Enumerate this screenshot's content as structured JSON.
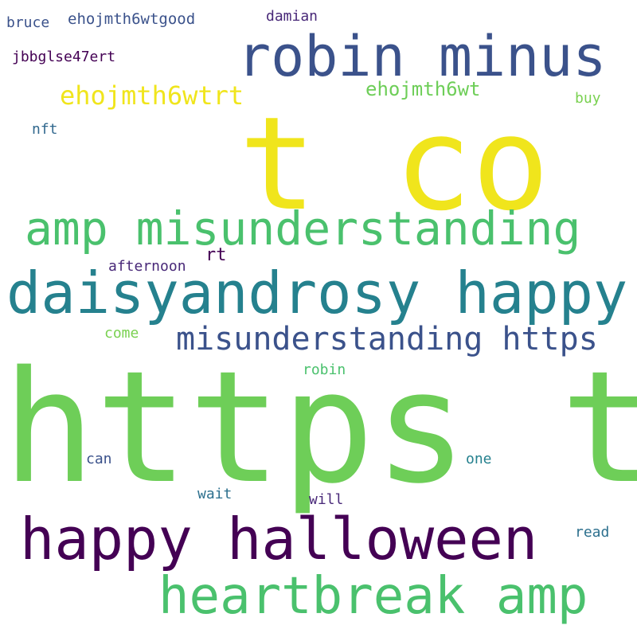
{
  "cloud": {
    "words": [
      {
        "text": "https t",
        "color": "#6ece58"
      },
      {
        "text": "t co",
        "color": "#f0e51c"
      },
      {
        "text": "daisyandrosy happy",
        "color": "#25818e"
      },
      {
        "text": "robin minus",
        "color": "#3b528b"
      },
      {
        "text": "amp misunderstanding",
        "color": "#4ac16d"
      },
      {
        "text": "happy halloween",
        "color": "#440154"
      },
      {
        "text": "heartbreak amp",
        "color": "#4ac16d"
      },
      {
        "text": "misunderstanding https",
        "color": "#3b528b"
      },
      {
        "text": "ehojmth6wtrt",
        "color": "#f0e51c"
      },
      {
        "text": "ehojmth6wt",
        "color": "#6ece58"
      },
      {
        "text": "ehojmth6wtgood",
        "color": "#3b528b"
      },
      {
        "text": "jbbglse47ert",
        "color": "#440154"
      },
      {
        "text": "damian",
        "color": "#482878"
      },
      {
        "text": "bruce",
        "color": "#3b528b"
      },
      {
        "text": "buy",
        "color": "#7ad151"
      },
      {
        "text": "nft",
        "color": "#31688e"
      },
      {
        "text": "afternoon",
        "color": "#482878"
      },
      {
        "text": "rt",
        "color": "#440154"
      },
      {
        "text": "come",
        "color": "#7ad151"
      },
      {
        "text": "robin",
        "color": "#4ac16d"
      },
      {
        "text": "can",
        "color": "#3b528b"
      },
      {
        "text": "one",
        "color": "#25818e"
      },
      {
        "text": "wait",
        "color": "#2d708e"
      },
      {
        "text": "will",
        "color": "#482878"
      },
      {
        "text": "read",
        "color": "#2d708e"
      }
    ]
  }
}
